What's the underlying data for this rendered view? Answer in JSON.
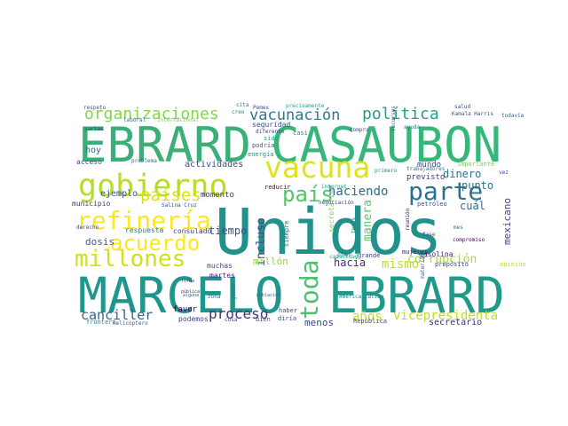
{
  "words": [
    {
      "text": "EBRARD",
      "color": "#3aaf78"
    },
    {
      "text": "CASAUBON",
      "color": "#35b779"
    },
    {
      "text": "Unidos",
      "color": "#21918c"
    },
    {
      "text": "MARCELO",
      "color": "#1f968b"
    },
    {
      "text": "EBRARD",
      "color": "#1f9a8a"
    },
    {
      "text": "gobierno",
      "color": "#b5de2b"
    },
    {
      "text": "vacuna",
      "color": "#dfe318"
    },
    {
      "text": "parte",
      "color": "#2c728e"
    },
    {
      "text": "refinería",
      "color": "#fde725"
    },
    {
      "text": "millones",
      "color": "#d0e11c"
    },
    {
      "text": "acuerdo",
      "color": "#fde725"
    },
    {
      "text": "país",
      "color": "#54c568"
    },
    {
      "text": "países",
      "color": "#d8e219"
    },
    {
      "text": "toda",
      "color": "#4ac16d"
    },
    {
      "text": "organizaciones",
      "color": "#86d549"
    },
    {
      "text": "vacunación",
      "color": "#2a788e"
    },
    {
      "text": "política",
      "color": "#2a9a86"
    },
    {
      "text": "haciendo",
      "color": "#2f6c8e"
    },
    {
      "text": "canciller",
      "color": "#33638d"
    },
    {
      "text": "proceso",
      "color": "#46327e"
    },
    {
      "text": "mismo",
      "color": "#c0df25"
    },
    {
      "text": "años",
      "color": "#c2df23"
    },
    {
      "text": "vicepresidenta",
      "color": "#bddf26"
    },
    {
      "text": "corrupción",
      "color": "#9fda3a"
    },
    {
      "text": "incluso",
      "color": "#3e4a89"
    },
    {
      "text": "dinero",
      "color": "#2c728e"
    },
    {
      "text": "punto",
      "color": "#2c728e"
    },
    {
      "text": "tiempo",
      "color": "#3b518b"
    },
    {
      "text": "dosis",
      "color": "#365c8d"
    },
    {
      "text": "millón",
      "color": "#90d743"
    },
    {
      "text": "hacia",
      "color": "#472d7b"
    },
    {
      "text": "menos",
      "color": "#3f4788"
    },
    {
      "text": "manera",
      "color": "#5ec962"
    },
    {
      "text": "mexicano",
      "color": "#414487"
    },
    {
      "text": "cuál",
      "color": "#31688e"
    },
    {
      "text": "secretario",
      "color": "#482878"
    },
    {
      "text": "actividades",
      "color": "#3e4989"
    },
    {
      "text": "hoy",
      "color": "#31688e"
    },
    {
      "text": "ejemplo",
      "color": "#3b528b"
    },
    {
      "text": "previsto",
      "color": "#443983"
    },
    {
      "text": "mundo",
      "color": "#3e4a89"
    },
    {
      "text": "momento",
      "color": "#46337f"
    },
    {
      "text": "favor",
      "color": "#440154"
    },
    {
      "text": "podemos",
      "color": "#433e85"
    },
    {
      "text": "consulado",
      "color": "#414487"
    },
    {
      "text": "respuesta",
      "color": "#2a788e"
    },
    {
      "text": "municipio",
      "color": "#453882"
    },
    {
      "text": "acceso",
      "color": "#3b528b"
    },
    {
      "text": "muchas",
      "color": "#3d4e8a"
    },
    {
      "text": "martes",
      "color": "#481f70"
    },
    {
      "text": "seguridad",
      "color": "#3e4a89"
    },
    {
      "text": "energía",
      "color": "#21918c"
    },
    {
      "text": "podría",
      "color": "#3b528b"
    },
    {
      "text": "sido",
      "color": "#22a785"
    },
    {
      "text": "casi",
      "color": "#25848e"
    },
    {
      "text": "diferente",
      "color": "#443a83"
    },
    {
      "text": "gasolina",
      "color": "#481b6d"
    },
    {
      "text": "mujeres",
      "color": "#482475"
    },
    {
      "text": "grande",
      "color": "#453781"
    },
    {
      "text": "reducir",
      "color": "#440154"
    },
    {
      "text": "importante",
      "color": "#75d054"
    },
    {
      "text": "frontera",
      "color": "#25858e"
    },
    {
      "text": "helicóptero",
      "color": "#38588c"
    },
    {
      "text": "secretaría",
      "color": "#7ad151"
    },
    {
      "text": "siempre",
      "color": "#2e6e8e"
    },
    {
      "text": "reunión",
      "color": "#481467"
    },
    {
      "text": "temas",
      "color": "#2c728e"
    },
    {
      "text": "petróleo",
      "color": "#3b528b"
    },
    {
      "text": "propósito",
      "color": "#404688"
    },
    {
      "text": "opinión",
      "color": "#b8de29"
    },
    {
      "text": "compromiso",
      "color": "#440154"
    },
    {
      "text": "internet",
      "color": "#1fa088"
    },
    {
      "text": "negociación",
      "color": "#3e4a89"
    },
    {
      "text": "capacidad",
      "color": "#1fa188"
    },
    {
      "text": "trabajadores",
      "color": "#2d708e"
    },
    {
      "text": "primero",
      "color": "#21918c"
    },
    {
      "text": "compra",
      "color": "#3e4989"
    },
    {
      "text": "laboral",
      "color": "#2c728e"
    },
    {
      "text": "internacional",
      "color": "#7fd34e"
    },
    {
      "text": "respeto",
      "color": "#3b528b"
    },
    {
      "text": "creo",
      "color": "#2a788e"
    },
    {
      "text": "cita",
      "color": "#2a778e"
    },
    {
      "text": "Pemex",
      "color": "#3e4989"
    },
    {
      "text": "precisamente",
      "color": "#20a386"
    },
    {
      "text": "salud",
      "color": "#3e4a89"
    },
    {
      "text": "Kamala Harris",
      "color": "#3b528b"
    },
    {
      "text": "todavía",
      "color": "#365c8d"
    },
    {
      "text": "recursos",
      "color": "#3e4989"
    },
    {
      "text": "ayuda",
      "color": "#2c728e"
    },
    {
      "text": "vez",
      "color": "#404588"
    },
    {
      "text": "mes",
      "color": "#2d708e"
    },
    {
      "text": "fase",
      "color": "#3b528b"
    },
    {
      "text": "materia",
      "color": "#355f8d"
    },
    {
      "text": "plan",
      "color": "#2c738e"
    },
    {
      "text": "derecho",
      "color": "#404688"
    },
    {
      "text": "Salina Cruz",
      "color": "#3b528b"
    },
    {
      "text": "problema",
      "color": "#31688e"
    },
    {
      "text": "forma",
      "color": "#3e4989"
    },
    {
      "text": "pública",
      "color": "#453781"
    },
    {
      "text": "alguna",
      "color": "#3b528b"
    },
    {
      "text": "zona",
      "color": "#2d708e"
    },
    {
      "text": "gente",
      "color": "#2c738e"
    },
    {
      "text": "población",
      "color": "#30678d"
    },
    {
      "text": "haber",
      "color": "#3b518b"
    },
    {
      "text": "bien",
      "color": "#3d4e8a"
    },
    {
      "text": "diría",
      "color": "#3e4a89"
    },
    {
      "text": "cosa",
      "color": "#414487"
    },
    {
      "text": "República",
      "color": "#3e4989"
    },
    {
      "text": "América Latina",
      "color": "#26828e"
    },
    {
      "text": "varias",
      "color": "#433e85"
    },
    {
      "text": "respecto",
      "color": "#2a768e"
    }
  ]
}
